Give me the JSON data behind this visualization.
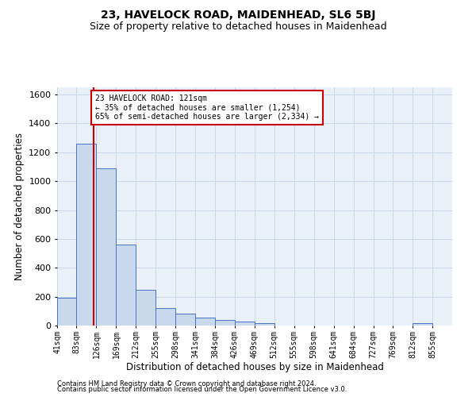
{
  "title": "23, HAVELOCK ROAD, MAIDENHEAD, SL6 5BJ",
  "subtitle": "Size of property relative to detached houses in Maidenhead",
  "xlabel": "Distribution of detached houses by size in Maidenhead",
  "ylabel": "Number of detached properties",
  "footer_line1": "Contains HM Land Registry data © Crown copyright and database right 2024.",
  "footer_line2": "Contains public sector information licensed under the Open Government Licence v3.0.",
  "bin_edges": [
    41,
    83,
    126,
    169,
    212,
    255,
    298,
    341,
    384,
    426,
    469,
    512,
    555,
    598,
    641,
    684,
    727,
    769,
    812,
    855,
    898
  ],
  "bin_counts": [
    190,
    1260,
    1090,
    560,
    250,
    120,
    80,
    55,
    40,
    25,
    15,
    0,
    0,
    0,
    0,
    0,
    0,
    0,
    15,
    0,
    0
  ],
  "bar_facecolor": "#c9d9ed",
  "bar_edgecolor": "#4472c4",
  "property_size": 121,
  "vline_color": "#cc0000",
  "annotation_text": "23 HAVELOCK ROAD: 121sqm\n← 35% of detached houses are smaller (1,254)\n65% of semi-detached houses are larger (2,334) →",
  "annotation_box_edgecolor": "#cc0000",
  "annotation_box_facecolor": "#ffffff",
  "grid_color": "#c8d8e8",
  "background_color": "#eaf0f8",
  "ylim": [
    0,
    1650
  ],
  "yticks": [
    0,
    200,
    400,
    600,
    800,
    1000,
    1200,
    1400,
    1600
  ],
  "title_fontsize": 10,
  "subtitle_fontsize": 9,
  "xlabel_fontsize": 8.5,
  "ylabel_fontsize": 8.5,
  "tick_fontsize": 7,
  "footer_fontsize": 6,
  "annotation_fontsize": 7
}
